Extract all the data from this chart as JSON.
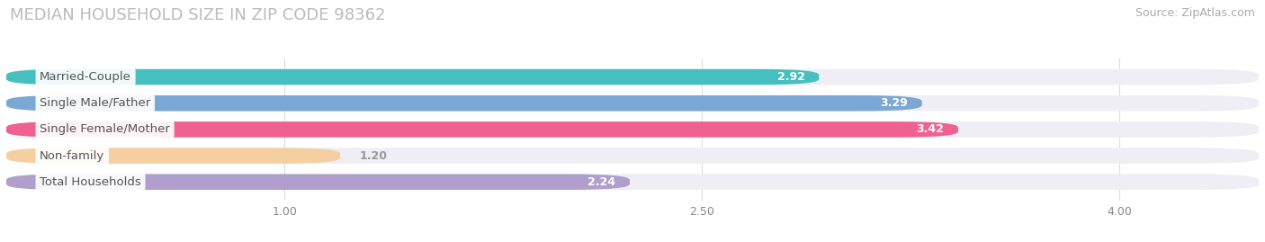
{
  "title": "MEDIAN HOUSEHOLD SIZE IN ZIP CODE 98362",
  "source": "Source: ZipAtlas.com",
  "categories": [
    "Married-Couple",
    "Single Male/Father",
    "Single Female/Mother",
    "Non-family",
    "Total Households"
  ],
  "values": [
    2.92,
    3.29,
    3.42,
    1.2,
    2.24
  ],
  "bar_colors": [
    "#45BFBF",
    "#7BA7D4",
    "#F06090",
    "#F5CFA0",
    "#B09ECC"
  ],
  "bar_bg_color": "#EEEEF4",
  "xmin": 0.0,
  "xmax": 4.5,
  "xlim_display": [
    0.0,
    4.5
  ],
  "xticks": [
    1.0,
    2.5,
    4.0
  ],
  "label_color_inside": "#FFFFFF",
  "label_color_outside": "#999999",
  "title_fontsize": 13,
  "source_fontsize": 9,
  "bar_label_fontsize": 9,
  "category_fontsize": 9.5,
  "background_color": "#FFFFFF",
  "value_threshold": 2.0
}
